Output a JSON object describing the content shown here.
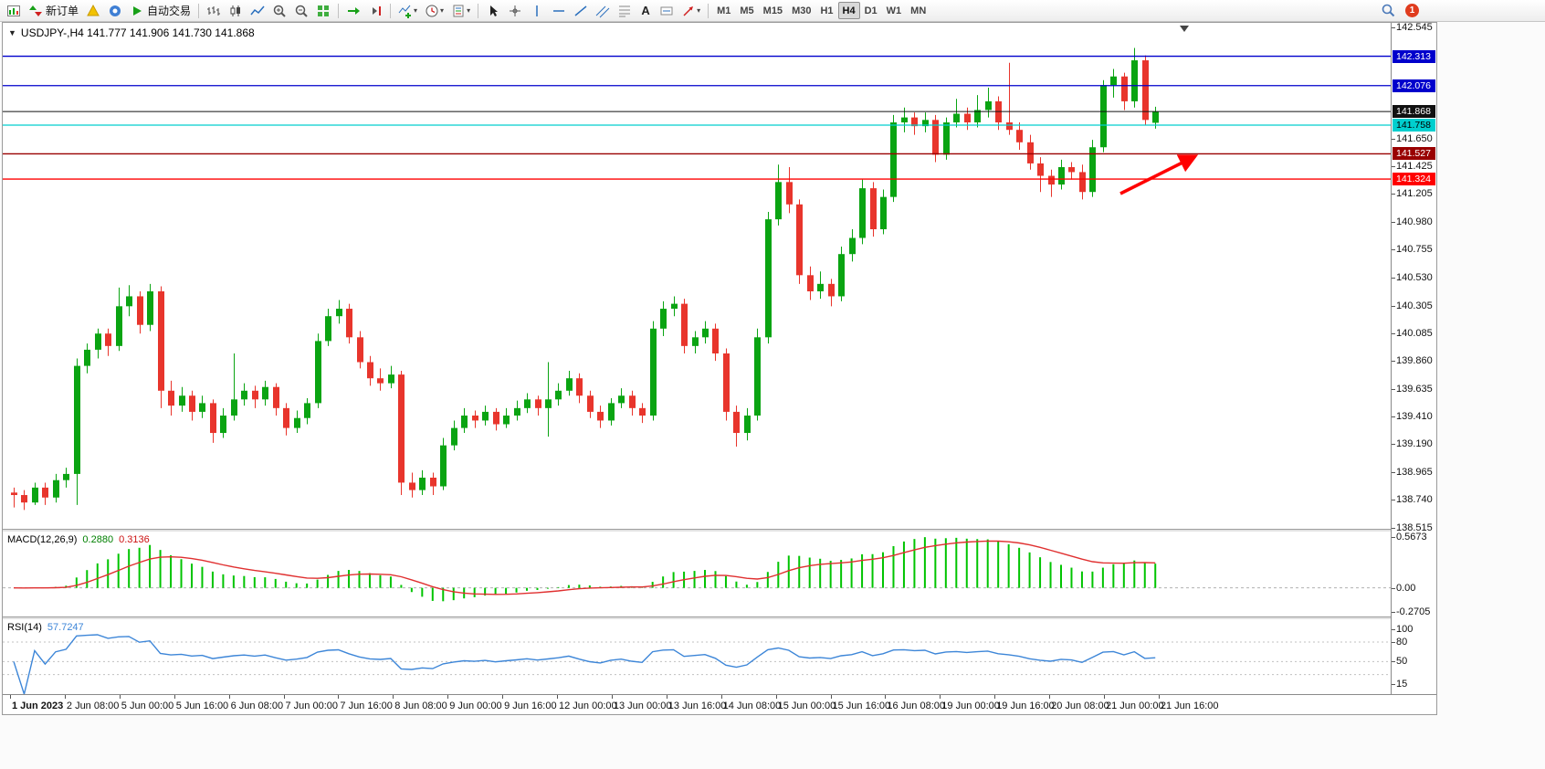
{
  "toolbar": {
    "new_order": "新订单",
    "auto_trading": "自动交易",
    "text_tool": "A",
    "timeframes": [
      "M1",
      "M5",
      "M15",
      "M30",
      "H1",
      "H4",
      "D1",
      "W1",
      "MN"
    ],
    "active_timeframe": "H4",
    "notification_count": "1",
    "icons": [
      "new-chart-icon",
      "new-order-icon",
      "metaeditor-icon",
      "market-icon",
      "auto-trading-icon",
      "bar-chart-icon",
      "candlestick-chart-icon",
      "line-chart-icon",
      "zoom-in-icon",
      "zoom-out-icon",
      "tile-windows-icon",
      "auto-scroll-icon",
      "chart-shift-icon",
      "indicators-icon",
      "periods-icon",
      "templates-icon",
      "cursor-icon",
      "crosshair-icon",
      "vertical-line-icon",
      "horizontal-line-icon",
      "trendline-icon",
      "channel-icon",
      "fibonacci-icon",
      "text-icon",
      "label-icon",
      "arrows-icon",
      "search-icon",
      "notification-badge"
    ]
  },
  "chart": {
    "title": "USDJPY-,H4 141.777 141.906 141.730 141.868",
    "one_click_arrow": "▼"
  },
  "chart_data": {
    "type": "candlestick",
    "symbol": "USDJPY-",
    "timeframe": "H4",
    "ohlc_display": {
      "open": "141.777",
      "high": "141.906",
      "low": "141.730",
      "close": "141.868"
    },
    "candle_colors": {
      "up": "#0aa412",
      "down": "#e8352c"
    },
    "price_axis": {
      "min": 138.515,
      "max": 142.545,
      "ticks": [
        "142.545",
        "141.650",
        "141.425",
        "141.205",
        "140.980",
        "140.755",
        "140.530",
        "140.305",
        "140.085",
        "139.860",
        "139.635",
        "139.410",
        "139.190",
        "138.965",
        "138.740",
        "138.515"
      ]
    },
    "price_lines": [
      {
        "price": 142.313,
        "color": "#0000cc",
        "label": "142.313",
        "text": "#ffffff"
      },
      {
        "price": 142.076,
        "color": "#0000cc",
        "label": "142.076",
        "text": "#ffffff"
      },
      {
        "price": 141.758,
        "color": "#00cfcf",
        "label": "141.758",
        "text": "#000000"
      },
      {
        "price": 141.527,
        "color": "#990000",
        "label": "141.527",
        "text": "#ffffff"
      },
      {
        "price": 141.324,
        "color": "#ff0000",
        "label": "141.324",
        "text": "#ffffff"
      }
    ],
    "bid_line": {
      "price": 141.868,
      "label": "141.868",
      "color": "#111111",
      "text": "#ffffff"
    },
    "arrow": {
      "color": "#ff0000"
    },
    "time_labels": [
      "1 Jun 2023",
      "2 Jun 08:00",
      "5 Jun 00:00",
      "5 Jun 16:00",
      "6 Jun 08:00",
      "7 Jun 00:00",
      "7 Jun 16:00",
      "8 Jun 08:00",
      "9 Jun 00:00",
      "9 Jun 16:00",
      "12 Jun 00:00",
      "13 Jun 00:00",
      "13 Jun 16:00",
      "14 Jun 08:00",
      "15 Jun 00:00",
      "15 Jun 16:00",
      "16 Jun 08:00",
      "19 Jun 00:00",
      "19 Jun 16:00",
      "20 Jun 08:00",
      "21 Jun 00:00",
      "21 Jun 16:00"
    ],
    "macd": {
      "name": "MACD(12,26,9)",
      "value_main": "0.2880",
      "value_signal": "0.3136",
      "fast": 12,
      "slow": 26,
      "signal": 9,
      "axis": [
        "0.5673",
        "0.00",
        "-0.2705"
      ],
      "histogram_color": "#00c400",
      "signal_color": "#e03030"
    },
    "rsi": {
      "name": "RSI(14)",
      "value": "57.7247",
      "period": 14,
      "axis": [
        "100",
        "80",
        "50",
        "15"
      ],
      "levels": [
        80,
        50,
        30
      ],
      "color": "#3d86d8"
    },
    "candles": [
      [
        138.8,
        138.84,
        138.68,
        138.78
      ],
      [
        138.78,
        138.82,
        138.66,
        138.72
      ],
      [
        138.72,
        138.88,
        138.7,
        138.84
      ],
      [
        138.84,
        138.88,
        138.7,
        138.76
      ],
      [
        138.76,
        138.95,
        138.72,
        138.9
      ],
      [
        138.9,
        139.0,
        138.84,
        138.95
      ],
      [
        138.95,
        139.88,
        138.7,
        139.82
      ],
      [
        139.82,
        140.0,
        139.76,
        139.95
      ],
      [
        139.95,
        140.12,
        139.88,
        140.08
      ],
      [
        140.08,
        140.12,
        139.9,
        139.98
      ],
      [
        139.98,
        140.45,
        139.94,
        140.3
      ],
      [
        140.3,
        140.47,
        140.22,
        140.38
      ],
      [
        140.38,
        140.42,
        140.08,
        140.15
      ],
      [
        140.15,
        140.48,
        140.1,
        140.42
      ],
      [
        140.42,
        140.46,
        139.48,
        139.62
      ],
      [
        139.62,
        139.7,
        139.42,
        139.5
      ],
      [
        139.5,
        139.65,
        139.45,
        139.58
      ],
      [
        139.58,
        139.62,
        139.38,
        139.45
      ],
      [
        139.45,
        139.58,
        139.4,
        139.52
      ],
      [
        139.52,
        139.55,
        139.2,
        139.28
      ],
      [
        139.28,
        139.48,
        139.24,
        139.42
      ],
      [
        139.42,
        139.92,
        139.38,
        139.55
      ],
      [
        139.55,
        139.68,
        139.5,
        139.62
      ],
      [
        139.62,
        139.66,
        139.48,
        139.55
      ],
      [
        139.55,
        139.7,
        139.5,
        139.65
      ],
      [
        139.65,
        139.68,
        139.42,
        139.48
      ],
      [
        139.48,
        139.52,
        139.26,
        139.32
      ],
      [
        139.32,
        139.46,
        139.28,
        139.4
      ],
      [
        139.4,
        139.56,
        139.35,
        139.52
      ],
      [
        139.52,
        140.08,
        139.48,
        140.02
      ],
      [
        140.02,
        140.28,
        139.98,
        140.22
      ],
      [
        140.22,
        140.35,
        140.16,
        140.28
      ],
      [
        140.28,
        140.32,
        140.0,
        140.05
      ],
      [
        140.05,
        140.1,
        139.8,
        139.85
      ],
      [
        139.85,
        139.9,
        139.66,
        139.72
      ],
      [
        139.72,
        139.8,
        139.62,
        139.68
      ],
      [
        139.68,
        139.82,
        139.64,
        139.75
      ],
      [
        139.75,
        139.78,
        138.78,
        138.88
      ],
      [
        138.88,
        138.96,
        138.76,
        138.82
      ],
      [
        138.82,
        138.98,
        138.78,
        138.92
      ],
      [
        138.92,
        138.96,
        138.78,
        138.85
      ],
      [
        138.85,
        139.24,
        138.82,
        139.18
      ],
      [
        139.18,
        139.38,
        139.14,
        139.32
      ],
      [
        139.32,
        139.48,
        139.28,
        139.42
      ],
      [
        139.42,
        139.46,
        139.32,
        139.38
      ],
      [
        139.38,
        139.5,
        139.34,
        139.45
      ],
      [
        139.45,
        139.48,
        139.3,
        139.35
      ],
      [
        139.35,
        139.48,
        139.32,
        139.42
      ],
      [
        139.42,
        139.54,
        139.38,
        139.48
      ],
      [
        139.48,
        139.6,
        139.44,
        139.55
      ],
      [
        139.55,
        139.58,
        139.42,
        139.48
      ],
      [
        139.48,
        139.85,
        139.25,
        139.55
      ],
      [
        139.55,
        139.68,
        139.5,
        139.62
      ],
      [
        139.62,
        139.78,
        139.58,
        139.72
      ],
      [
        139.72,
        139.76,
        139.52,
        139.58
      ],
      [
        139.58,
        139.62,
        139.4,
        139.45
      ],
      [
        139.45,
        139.5,
        139.32,
        139.38
      ],
      [
        139.38,
        139.56,
        139.34,
        139.52
      ],
      [
        139.52,
        139.64,
        139.48,
        139.58
      ],
      [
        139.58,
        139.62,
        139.42,
        139.48
      ],
      [
        139.48,
        139.52,
        139.36,
        139.42
      ],
      [
        139.42,
        140.18,
        139.38,
        140.12
      ],
      [
        140.12,
        140.34,
        140.06,
        140.28
      ],
      [
        140.28,
        140.38,
        140.22,
        140.32
      ],
      [
        140.32,
        140.36,
        139.92,
        139.98
      ],
      [
        139.98,
        140.1,
        139.92,
        140.05
      ],
      [
        140.05,
        140.18,
        140.0,
        140.12
      ],
      [
        140.12,
        140.16,
        139.86,
        139.92
      ],
      [
        139.92,
        139.96,
        139.38,
        139.45
      ],
      [
        139.45,
        139.5,
        139.17,
        139.28
      ],
      [
        139.28,
        139.48,
        139.22,
        139.42
      ],
      [
        139.42,
        140.12,
        139.38,
        140.05
      ],
      [
        140.05,
        141.06,
        140.0,
        141.0
      ],
      [
        141.0,
        141.44,
        140.95,
        141.3
      ],
      [
        141.3,
        141.42,
        141.05,
        141.12
      ],
      [
        141.12,
        141.16,
        140.48,
        140.55
      ],
      [
        140.55,
        140.62,
        140.35,
        140.42
      ],
      [
        140.42,
        140.58,
        140.36,
        140.48
      ],
      [
        140.48,
        140.52,
        140.3,
        140.38
      ],
      [
        140.38,
        140.78,
        140.34,
        140.72
      ],
      [
        140.72,
        140.92,
        140.66,
        140.85
      ],
      [
        140.85,
        141.32,
        140.8,
        141.25
      ],
      [
        141.25,
        141.3,
        140.86,
        140.92
      ],
      [
        140.92,
        141.24,
        140.88,
        141.18
      ],
      [
        141.18,
        141.84,
        141.14,
        141.78
      ],
      [
        141.78,
        141.9,
        141.7,
        141.82
      ],
      [
        141.82,
        141.86,
        141.68,
        141.75
      ],
      [
        141.75,
        141.86,
        141.7,
        141.8
      ],
      [
        141.8,
        141.84,
        141.46,
        141.52
      ],
      [
        141.52,
        141.82,
        141.48,
        141.78
      ],
      [
        141.78,
        141.97,
        141.74,
        141.85
      ],
      [
        141.85,
        141.9,
        141.72,
        141.78
      ],
      [
        141.78,
        142.0,
        141.74,
        141.88
      ],
      [
        141.88,
        142.06,
        141.82,
        141.95
      ],
      [
        141.95,
        141.99,
        141.72,
        141.78
      ],
      [
        141.78,
        142.26,
        141.68,
        141.72
      ],
      [
        141.72,
        141.78,
        141.56,
        141.62
      ],
      [
        141.62,
        141.68,
        141.4,
        141.45
      ],
      [
        141.45,
        141.5,
        141.22,
        141.35
      ],
      [
        141.35,
        141.4,
        141.18,
        141.28
      ],
      [
        141.28,
        141.48,
        141.24,
        141.42
      ],
      [
        141.42,
        141.46,
        141.32,
        141.38
      ],
      [
        141.38,
        141.44,
        141.16,
        141.22
      ],
      [
        141.22,
        141.64,
        141.18,
        141.58
      ],
      [
        141.58,
        142.12,
        141.54,
        142.08
      ],
      [
        142.08,
        142.21,
        141.98,
        142.15
      ],
      [
        142.15,
        142.18,
        141.88,
        141.95
      ],
      [
        141.95,
        142.38,
        141.9,
        142.28
      ],
      [
        142.28,
        142.32,
        141.76,
        141.8
      ],
      [
        141.777,
        141.906,
        141.73,
        141.868
      ]
    ]
  }
}
